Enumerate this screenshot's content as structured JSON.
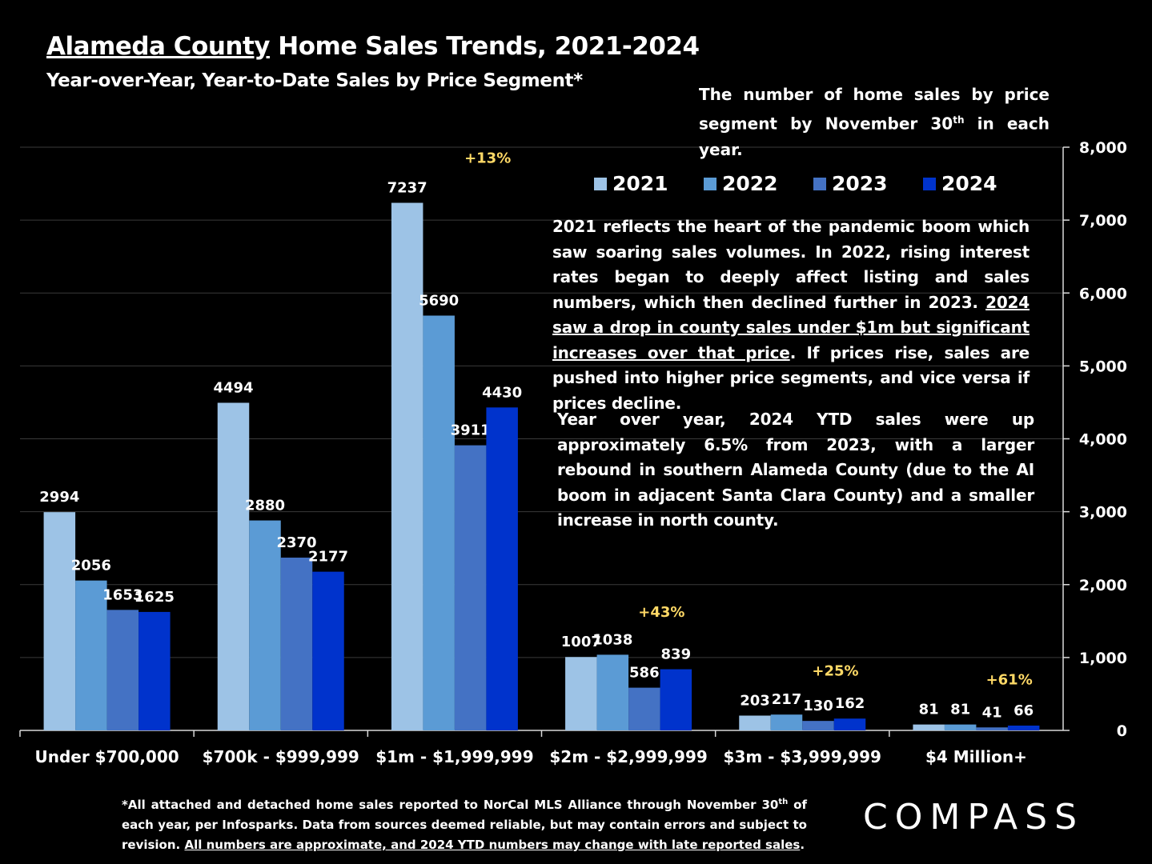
{
  "header": {
    "title_link": "Alameda County",
    "title_rest": " Home Sales Trends, 2021-2024",
    "subtitle": "Year-over-Year, Year-to-Date Sales by Price Segment*"
  },
  "note_top": {
    "text_a": "The number of home sales by price segment by November 30",
    "sup": "th",
    "text_b": " in each year."
  },
  "para1": {
    "a": "2021 reflects the heart of the pandemic boom which saw soaring sales volumes. In 2022, rising interest rates began to deeply affect listing and sales numbers, which then declined further in 2023. ",
    "u": "2024 saw a drop in county sales under $1m but significant increases over that price",
    "b": ". If prices rise, sales are pushed into higher price segments, and vice versa if prices decline."
  },
  "para2": {
    "text": "Year over year, 2024 YTD sales were up approximately 6.5% from 2023, with a larger rebound in southern Alameda County (due to the AI boom in adjacent Santa Clara County) and a smaller increase in north county."
  },
  "footnote": {
    "a": "*All attached and detached home sales reported to NorCal MLS Alliance through November 30",
    "sup": "th",
    "b": " of each year, per Infosparks. Data from sources deemed reliable, but may contain errors and subject to revision. ",
    "u": "All numbers are approximate, and 2024 YTD numbers may change with late reported sales",
    "c": "."
  },
  "logo": {
    "text": "COMPASS"
  },
  "chart_data": {
    "type": "bar",
    "categories": [
      "Under $700,000",
      "$700k - $999,999",
      "$1m - $1,999,999",
      "$2m - $2,999,999",
      "$3m - $3,999,999",
      "$4 Million+"
    ],
    "series": [
      {
        "name": "2021",
        "color": "#9dc3e6",
        "values": [
          2994,
          4494,
          7237,
          1007,
          203,
          81
        ]
      },
      {
        "name": "2022",
        "color": "#5b9bd5",
        "values": [
          2056,
          2880,
          5690,
          1038,
          217,
          81
        ]
      },
      {
        "name": "2023",
        "color": "#4472c4",
        "values": [
          1653,
          2370,
          3911,
          586,
          130,
          41
        ]
      },
      {
        "name": "2024",
        "color": "#0033cc",
        "values": [
          1625,
          2177,
          4430,
          839,
          162,
          66
        ]
      }
    ],
    "annotations": [
      "",
      "",
      "+13%",
      "+43%",
      "+25%",
      "+61%"
    ],
    "annotation_color": "#ffd966",
    "ylim": [
      0,
      8000
    ],
    "yticks": [
      "0",
      "1,000",
      "2,000",
      "3,000",
      "4,000",
      "5,000",
      "6,000",
      "7,000",
      "8,000"
    ],
    "y_axis_side": "right",
    "grid": true,
    "legend": "top-center"
  }
}
